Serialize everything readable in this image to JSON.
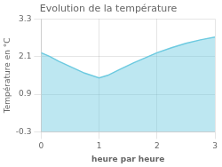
{
  "chart_data": {
    "type": "area",
    "title": "Evolution de la température",
    "xlabel": "heure par heure",
    "ylabel": "Température en °C",
    "x": [
      0,
      0.15,
      0.3,
      0.5,
      0.75,
      1.0,
      1.15,
      1.35,
      1.6,
      1.85,
      2.0,
      2.25,
      2.5,
      2.75,
      3.0
    ],
    "values": [
      2.22,
      2.1,
      1.95,
      1.78,
      1.57,
      1.42,
      1.5,
      1.68,
      1.9,
      2.1,
      2.22,
      2.38,
      2.52,
      2.63,
      2.72
    ],
    "color": "#6dcae0",
    "xlim": [
      0,
      3
    ],
    "ylim": [
      -0.3,
      3.3
    ],
    "xticks": [
      0,
      1,
      2,
      3
    ],
    "yticks": [
      -0.3,
      0.9,
      2.1,
      3.3
    ],
    "grid": true
  }
}
